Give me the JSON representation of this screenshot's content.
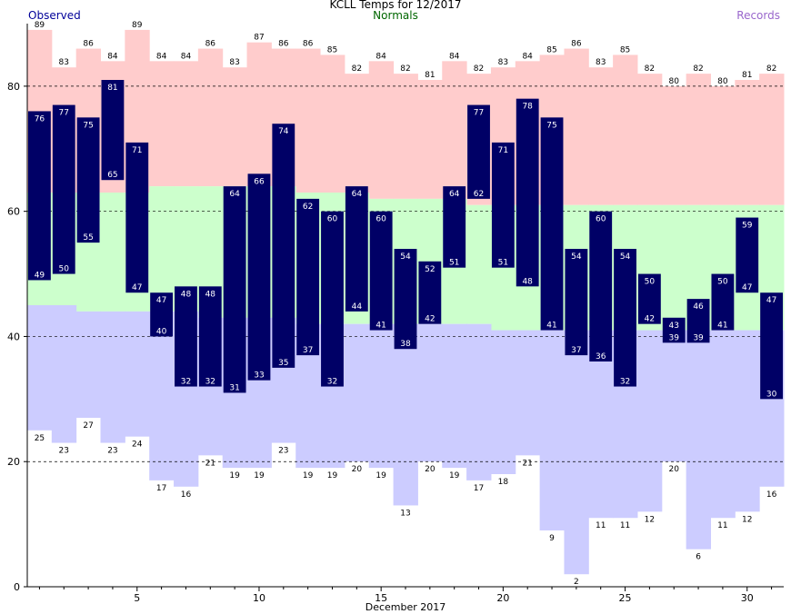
{
  "chart_data": {
    "type": "bar",
    "title": "KCLL Temps for 12/2017",
    "xlabel": "December 2017",
    "ylabel": "",
    "legend": {
      "observed": "Observed",
      "normals": "Normals",
      "records": "Records"
    },
    "ylim": [
      0,
      90
    ],
    "yticks": [
      0,
      20,
      40,
      60,
      80
    ],
    "xticks": [
      5,
      10,
      15,
      20,
      25,
      30
    ],
    "days": [
      1,
      2,
      3,
      4,
      5,
      6,
      7,
      8,
      9,
      10,
      11,
      12,
      13,
      14,
      15,
      16,
      17,
      18,
      19,
      20,
      21,
      22,
      23,
      24,
      25,
      26,
      27,
      28,
      29,
      30,
      31
    ],
    "record_high": [
      89,
      83,
      86,
      84,
      89,
      84,
      84,
      86,
      83,
      87,
      86,
      86,
      85,
      82,
      84,
      82,
      81,
      84,
      82,
      83,
      84,
      85,
      86,
      83,
      85,
      82,
      80,
      82,
      80,
      81,
      82
    ],
    "record_low": [
      25,
      23,
      27,
      23,
      24,
      17,
      16,
      21,
      19,
      19,
      23,
      19,
      19,
      20,
      19,
      13,
      20,
      19,
      17,
      18,
      21,
      9,
      2,
      11,
      11,
      12,
      20,
      6,
      11,
      12,
      16
    ],
    "normal_high": [
      63,
      63,
      63,
      63,
      63,
      64,
      64,
      64,
      64,
      64,
      64,
      63,
      63,
      63,
      62,
      62,
      62,
      62,
      61,
      61,
      61,
      61,
      61,
      61,
      61,
      61,
      61,
      61,
      61,
      61,
      61
    ],
    "normal_low": [
      45,
      45,
      44,
      44,
      44,
      44,
      44,
      43,
      43,
      43,
      43,
      42,
      42,
      42,
      42,
      42,
      42,
      42,
      42,
      41,
      41,
      41,
      41,
      41,
      41,
      41,
      41,
      41,
      41,
      41,
      41
    ],
    "observed_high": [
      76,
      77,
      75,
      81,
      71,
      47,
      48,
      48,
      64,
      66,
      74,
      62,
      60,
      64,
      60,
      54,
      52,
      64,
      77,
      71,
      78,
      75,
      54,
      60,
      54,
      50,
      43,
      46,
      50,
      59,
      47
    ],
    "observed_low": [
      49,
      50,
      55,
      65,
      47,
      40,
      32,
      32,
      31,
      33,
      35,
      37,
      32,
      44,
      41,
      38,
      42,
      51,
      62,
      51,
      48,
      41,
      37,
      36,
      32,
      42,
      39,
      39,
      41,
      47,
      30
    ],
    "colors": {
      "record_high_fill": "#ffcccc",
      "normal_fill": "#ccffcc",
      "record_low_fill": "#ccccff",
      "observed_fill": "#000066",
      "observed_text": "#ffffff",
      "observed_legend": "#000099",
      "normals_legend": "#006600",
      "records_legend": "#9966cc"
    },
    "grid": "dashed horizontal at 20, 40, 60, 80"
  }
}
